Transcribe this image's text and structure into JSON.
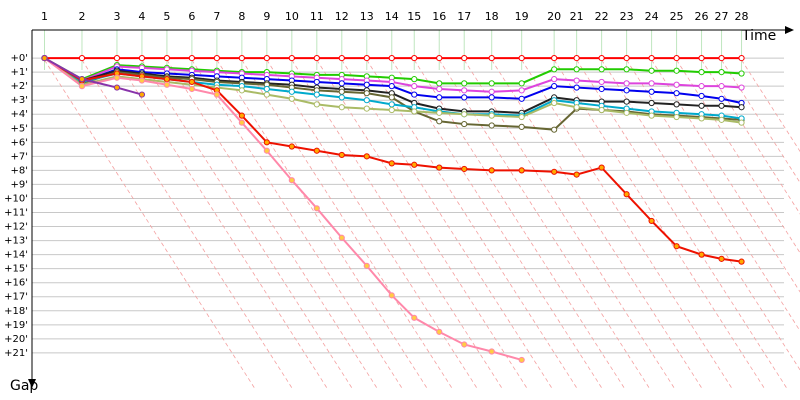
{
  "chart_data": {
    "type": "line",
    "x_axis_label": "Time",
    "y_axis_label": "Gap",
    "xlim": [
      0,
      30.5
    ],
    "ylim": [
      -2,
      23.5
    ],
    "grid": true,
    "xticks": [
      {
        "value": 0.5,
        "label": "1"
      },
      {
        "value": 2.0,
        "label": "2"
      },
      {
        "value": 3.4,
        "label": "3"
      },
      {
        "value": 4.4,
        "label": "4"
      },
      {
        "value": 5.4,
        "label": "5"
      },
      {
        "value": 6.4,
        "label": "6"
      },
      {
        "value": 7.4,
        "label": "7"
      },
      {
        "value": 8.4,
        "label": "8"
      },
      {
        "value": 9.4,
        "label": "9"
      },
      {
        "value": 10.4,
        "label": "10"
      },
      {
        "value": 11.4,
        "label": "11"
      },
      {
        "value": 12.4,
        "label": "12"
      },
      {
        "value": 13.4,
        "label": "13"
      },
      {
        "value": 14.4,
        "label": "14"
      },
      {
        "value": 15.3,
        "label": "15"
      },
      {
        "value": 16.3,
        "label": "16"
      },
      {
        "value": 17.3,
        "label": "17"
      },
      {
        "value": 18.4,
        "label": "18"
      },
      {
        "value": 19.6,
        "label": "19"
      },
      {
        "value": 20.9,
        "label": "20"
      },
      {
        "value": 21.8,
        "label": "21"
      },
      {
        "value": 22.8,
        "label": "22"
      },
      {
        "value": 23.8,
        "label": "23"
      },
      {
        "value": 24.8,
        "label": "24"
      },
      {
        "value": 25.8,
        "label": "25"
      },
      {
        "value": 26.8,
        "label": "26"
      },
      {
        "value": 27.6,
        "label": "27"
      },
      {
        "value": 28.4,
        "label": "28"
      }
    ],
    "yticks": [
      {
        "value": 0,
        "label": "+0'"
      },
      {
        "value": 1,
        "label": "+1'"
      },
      {
        "value": 2,
        "label": "+2'"
      },
      {
        "value": 3,
        "label": "+3'"
      },
      {
        "value": 4,
        "label": "+4'"
      },
      {
        "value": 5,
        "label": "+5'"
      },
      {
        "value": 6,
        "label": "+6'"
      },
      {
        "value": 7,
        "label": "+7'"
      },
      {
        "value": 8,
        "label": "+8'"
      },
      {
        "value": 9,
        "label": "+9'"
      },
      {
        "value": 10,
        "label": "+10'"
      },
      {
        "value": 11,
        "label": "+11'"
      },
      {
        "value": 12,
        "label": "+12'"
      },
      {
        "value": 13,
        "label": "+13'"
      },
      {
        "value": 14,
        "label": "+14'"
      },
      {
        "value": 15,
        "label": "+15'"
      },
      {
        "value": 16,
        "label": "+16'"
      },
      {
        "value": 17,
        "label": "+17'"
      },
      {
        "value": 18,
        "label": "+18'"
      },
      {
        "value": 19,
        "label": "+19'"
      },
      {
        "value": 20,
        "label": "+20'"
      },
      {
        "value": 21,
        "label": "+21'"
      }
    ],
    "x": [
      0.5,
      2.0,
      3.4,
      4.4,
      5.4,
      6.4,
      7.4,
      8.4,
      9.4,
      10.4,
      11.4,
      12.4,
      13.4,
      14.4,
      15.3,
      16.3,
      17.3,
      18.4,
      19.6,
      20.9,
      21.8,
      22.8,
      23.8,
      24.8,
      25.8,
      26.8,
      27.6,
      28.4
    ],
    "series": [
      {
        "color": "#ff0000",
        "marker_fill": "#ffffff",
        "values": [
          0,
          0,
          0,
          0,
          0,
          0,
          0,
          0,
          0,
          0,
          0,
          0,
          0,
          0,
          0,
          0,
          0,
          0,
          0,
          0,
          0,
          0,
          0,
          0,
          0,
          0,
          0,
          0
        ]
      },
      {
        "color": "#22cc00",
        "marker_fill": "#ffffff",
        "values": [
          0,
          1.5,
          0.5,
          0.6,
          0.7,
          0.8,
          0.9,
          1.0,
          1.0,
          1.1,
          1.2,
          1.2,
          1.3,
          1.4,
          1.5,
          1.8,
          1.8,
          1.8,
          1.8,
          0.8,
          0.8,
          0.8,
          0.8,
          0.9,
          0.9,
          1.0,
          1.0,
          1.1
        ]
      },
      {
        "color": "#dd44dd",
        "marker_fill": "#ffffff",
        "values": [
          0,
          1.6,
          0.6,
          0.7,
          0.8,
          0.9,
          1.0,
          1.1,
          1.2,
          1.3,
          1.4,
          1.5,
          1.6,
          1.7,
          2.0,
          2.2,
          2.3,
          2.4,
          2.3,
          1.5,
          1.6,
          1.7,
          1.8,
          1.8,
          1.9,
          2.0,
          2.0,
          2.1
        ]
      },
      {
        "color": "#0000ee",
        "marker_fill": "#ffffff",
        "values": [
          0,
          1.7,
          0.8,
          1.0,
          1.1,
          1.2,
          1.3,
          1.4,
          1.5,
          1.6,
          1.7,
          1.8,
          1.9,
          2.0,
          2.6,
          2.8,
          2.8,
          2.8,
          2.9,
          2.0,
          2.1,
          2.2,
          2.3,
          2.4,
          2.5,
          2.7,
          2.9,
          3.2
        ]
      },
      {
        "color": "#222222",
        "marker_fill": "#ffffff",
        "values": [
          0,
          1.6,
          0.9,
          1.1,
          1.3,
          1.4,
          1.6,
          1.7,
          1.8,
          1.9,
          2.1,
          2.2,
          2.3,
          2.5,
          3.2,
          3.6,
          3.8,
          3.8,
          3.9,
          2.8,
          3.0,
          3.1,
          3.1,
          3.2,
          3.3,
          3.4,
          3.4,
          3.5
        ]
      },
      {
        "color": "#666633",
        "marker_fill": "#ffffff",
        "values": [
          0,
          1.8,
          1.0,
          1.2,
          1.4,
          1.5,
          1.7,
          1.8,
          1.9,
          2.1,
          2.3,
          2.4,
          2.5,
          2.8,
          3.8,
          4.5,
          4.7,
          4.8,
          4.9,
          5.1,
          3.6,
          3.7,
          3.8,
          4.0,
          4.1,
          4.2,
          4.3,
          4.4
        ]
      },
      {
        "color": "#00aacc",
        "marker_fill": "#ffffff",
        "values": [
          0,
          1.7,
          1.1,
          1.3,
          1.5,
          1.7,
          1.9,
          2.0,
          2.2,
          2.4,
          2.6,
          2.8,
          3.0,
          3.3,
          3.5,
          3.8,
          4.0,
          4.0,
          4.1,
          3.0,
          3.2,
          3.4,
          3.6,
          3.8,
          3.9,
          4.0,
          4.1,
          4.3
        ]
      },
      {
        "color": "#aabb66",
        "marker_fill": "#ffffff",
        "values": [
          0,
          1.9,
          1.3,
          1.5,
          1.7,
          1.9,
          2.1,
          2.3,
          2.6,
          2.9,
          3.3,
          3.5,
          3.6,
          3.7,
          3.8,
          3.9,
          4.0,
          4.1,
          4.2,
          3.2,
          3.5,
          3.7,
          3.9,
          4.1,
          4.2,
          4.3,
          4.4,
          4.6
        ]
      },
      {
        "color": "#ee1100",
        "marker_fill": "#ffaa00",
        "values": [
          0,
          1.6,
          1.1,
          1.3,
          1.5,
          1.7,
          2.3,
          4.1,
          6.0,
          6.3,
          6.6,
          6.9,
          7.0,
          7.5,
          7.6,
          7.8,
          7.9,
          8.0,
          8.0,
          8.1,
          8.3,
          7.8,
          9.7,
          11.6,
          13.4,
          14.0,
          14.3,
          14.5
        ]
      },
      {
        "color": "#ff88aa",
        "marker_fill": "#ffcc44",
        "values": [
          0,
          2.0,
          1.4,
          1.6,
          1.9,
          2.2,
          2.6,
          4.6,
          6.6,
          8.7,
          10.7,
          12.8,
          14.8,
          16.9,
          18.5,
          19.5,
          20.4,
          20.9,
          21.5,
          null,
          null,
          null,
          null,
          null,
          null,
          null,
          null,
          null
        ]
      },
      {
        "color": "#8833aa",
        "marker_fill": "#ffaa00",
        "values": [
          0,
          1.5,
          2.1,
          2.6,
          null,
          null,
          null,
          null,
          null,
          null,
          null,
          null,
          null,
          null,
          null,
          null,
          null,
          null,
          null,
          null,
          null,
          null,
          null,
          null,
          null,
          null,
          null,
          null
        ]
      }
    ]
  }
}
